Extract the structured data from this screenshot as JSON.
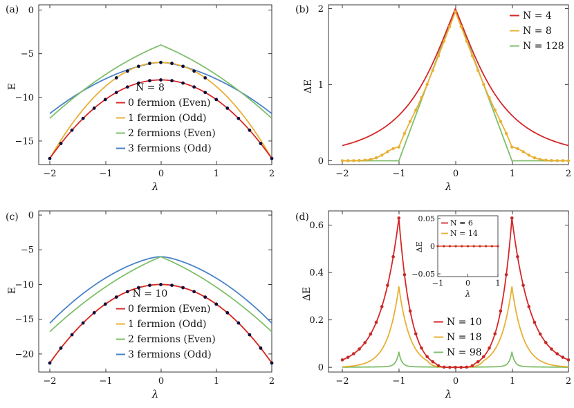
{
  "colors": {
    "red": "#d62728",
    "orange": "#e8b035",
    "green": "#7fbf6a",
    "blue": "#4a82c8",
    "dot": "#0a0f3c",
    "dotRed": "#c62828"
  },
  "chart_data": [
    {
      "panel": "(a)",
      "type": "line",
      "xlabel": "λ",
      "ylabel": "E",
      "xlim": [
        -2,
        2
      ],
      "ylim": [
        -17.7,
        0.6
      ],
      "xticks": [
        "-2",
        "-1",
        "0",
        "1",
        "2"
      ],
      "yticks": [
        "0",
        "-5",
        "-10",
        "-15"
      ],
      "legend_title": "N = 8",
      "series": [
        {
          "name": "0 fermion (Even)",
          "color": "red",
          "peak": -8,
          "edge": -17
        },
        {
          "name": "1 fermion (Odd)",
          "color": "orange",
          "peak": -6,
          "edge": -17
        },
        {
          "name": "2 fermions (Even)",
          "color": "green",
          "peak": -4,
          "edge": -12.4
        },
        {
          "name": "3 fermions (Odd)",
          "color": "blue",
          "peak": -6,
          "edge": -12
        }
      ]
    },
    {
      "panel": "(b)",
      "type": "line",
      "xlabel": "λ",
      "ylabel": "ΔE",
      "xlim": [
        -2,
        2
      ],
      "ylim": [
        -0.05,
        2.05
      ],
      "xticks": [
        "-2",
        "-1",
        "0",
        "1",
        "2"
      ],
      "yticks": [
        "0",
        "1",
        "2"
      ],
      "series": [
        {
          "name": "N = 4",
          "color": "red"
        },
        {
          "name": "N = 8",
          "color": "orange"
        },
        {
          "name": "N = 128",
          "color": "green"
        }
      ]
    },
    {
      "panel": "(c)",
      "type": "line",
      "xlabel": "λ",
      "ylabel": "E",
      "xlim": [
        -2,
        2
      ],
      "ylim": [
        -22.6,
        0.6
      ],
      "xticks": [
        "-2",
        "-1",
        "0",
        "1",
        "2"
      ],
      "yticks": [
        "0",
        "-5",
        "-10",
        "-15",
        "-20"
      ],
      "legend_title": "N = 10",
      "series": [
        {
          "name": "0 fermion (Even)",
          "color": "red",
          "peak": -10,
          "edge": -21.3
        },
        {
          "name": "1 fermion (Odd)",
          "color": "orange",
          "peak": -10,
          "edge": -21.3
        },
        {
          "name": "2 fermions (Even)",
          "color": "green",
          "peak": -6,
          "edge": -16.8
        },
        {
          "name": "3 fermions (Odd)",
          "color": "blue",
          "peak": -6,
          "edge": -15.8
        }
      ]
    },
    {
      "panel": "(d)",
      "type": "line",
      "xlabel": "λ",
      "ylabel": "ΔE",
      "xlim": [
        -2,
        2
      ],
      "ylim": [
        -0.02,
        0.66
      ],
      "xticks": [
        "-2",
        "-1",
        "0",
        "1",
        "2"
      ],
      "yticks": [
        "0",
        "0.2",
        "0.4",
        "0.6"
      ],
      "series": [
        {
          "name": "N = 10",
          "color": "red",
          "peak": 0.63
        },
        {
          "name": "N = 18",
          "color": "orange",
          "peak": 0.34
        },
        {
          "name": "N = 98",
          "color": "green",
          "peak": 0.06
        }
      ],
      "inset": {
        "xlabel": "λ",
        "ylabel": "ΔE",
        "xlim": [
          -1,
          1
        ],
        "ylim": [
          -0.055,
          0.055
        ],
        "xticks": [
          "-1",
          "0",
          "1"
        ],
        "yticks": [
          "0.05",
          "0",
          "-0.05"
        ],
        "series": [
          {
            "name": "N = 6",
            "color": "red"
          },
          {
            "name": "N = 14",
            "color": "orange"
          }
        ]
      }
    }
  ]
}
